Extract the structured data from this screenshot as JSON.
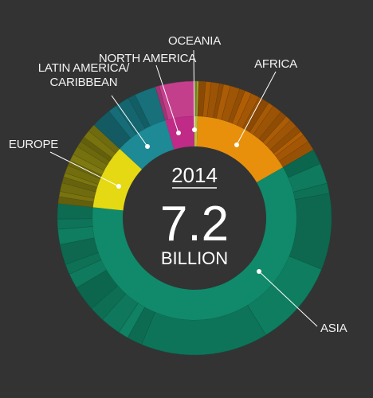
{
  "chart_data": {
    "type": "pie",
    "subtype": "sunburst",
    "title": "",
    "center": {
      "year": "2014",
      "value": "7.2",
      "unit": "BILLION"
    },
    "start_angle_deg": 0,
    "direction": "clockwise",
    "series": [
      {
        "name": "OCEANIA",
        "share": 0.005,
        "color": "#b5c13a",
        "outer_color": "#9aa431",
        "outer_slices": [
          0.5,
          0.5
        ]
      },
      {
        "name": "AFRICA",
        "share": 0.162,
        "color": "#e8900c",
        "outer_color": "#a85a06",
        "outer_slices": [
          0.05,
          0.04,
          0.06,
          0.03,
          0.05,
          0.07,
          0.04,
          0.05,
          0.06,
          0.03,
          0.05,
          0.04,
          0.07,
          0.05,
          0.04,
          0.06,
          0.05,
          0.03,
          0.06,
          0.07
        ]
      },
      {
        "name": "ASIA",
        "share": 0.6,
        "color": "#108a6a",
        "outer_color": "#0f7b5e",
        "outer_slices": [
          0.03,
          0.04,
          0.02,
          0.15,
          0.17,
          0.25,
          0.03,
          0.02,
          0.04,
          0.03,
          0.05,
          0.03,
          0.02,
          0.04,
          0.03,
          0.02,
          0.03
        ]
      },
      {
        "name": "EUROPE",
        "share": 0.102,
        "color": "#e5d914",
        "outer_color": "#79740f",
        "outer_slices": [
          0.08,
          0.06,
          0.1,
          0.07,
          0.05,
          0.09,
          0.06,
          0.08,
          0.1,
          0.07,
          0.06,
          0.09,
          0.09
        ]
      },
      {
        "name": "LATIN AMERICA/\nCARIBBEAN",
        "share": 0.085,
        "color": "#1d8a96",
        "outer_color": "#176e78",
        "outer_slices": [
          0.28,
          0.12,
          0.2,
          0.1,
          0.3
        ]
      },
      {
        "name": "NORTH AMERICA",
        "share": 0.046,
        "color": "#bf2b87",
        "outer_color": "#c43f8d",
        "outer_slices": [
          0.1,
          0.9
        ]
      }
    ]
  }
}
